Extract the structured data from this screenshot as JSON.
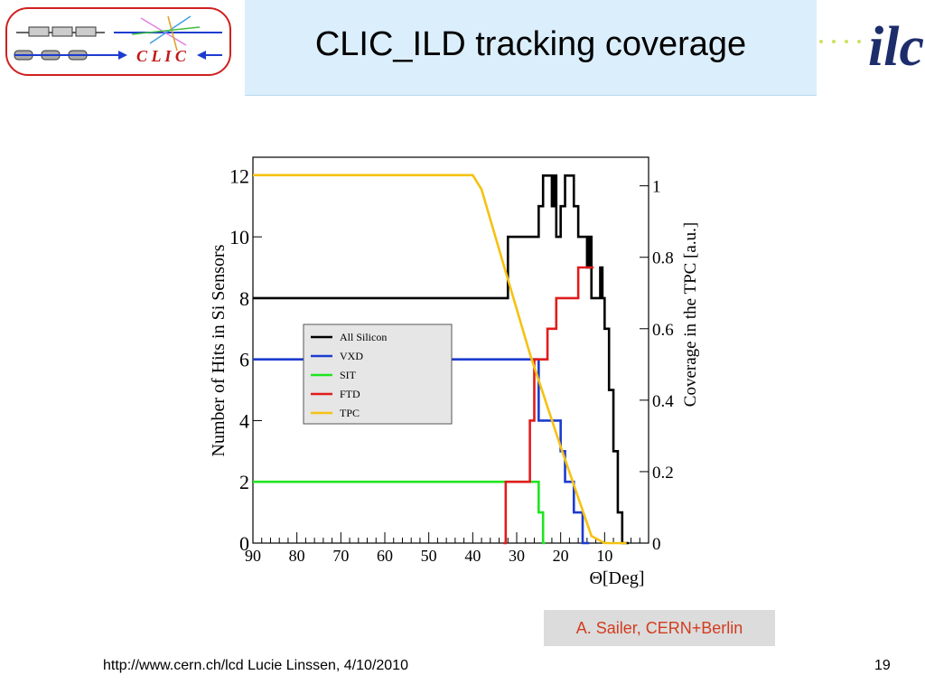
{
  "slide": {
    "title": "CLIC_ILD tracking coverage",
    "clic_logo_text": "C L I C",
    "ilc_logo_text": "ilc",
    "credit": "A. Sailer, CERN+Berlin",
    "footer_left": "http://www.cern.ch/lcd   Lucie Linssen, 4/10/2010",
    "page_number": "19"
  },
  "colors": {
    "title_bg": "#dbeefb",
    "credit_text": "#d23c1e",
    "all_silicon": "#000000",
    "vxd": "#1c3ccf",
    "sit": "#1fe51f",
    "ftd": "#e01c1c",
    "tpc": "#f5c211"
  },
  "chart_data": {
    "type": "line",
    "xlabel": "Θ[Deg]",
    "ylabel": "Number of Hits in Si Sensors",
    "y2label": "Coverage in the TPC [a.u.]",
    "xlim": [
      90,
      0
    ],
    "ylim": [
      0,
      12.6
    ],
    "y2lim": [
      0,
      1.08
    ],
    "xticks": [
      90,
      80,
      70,
      60,
      50,
      40,
      30,
      20,
      10
    ],
    "yticks": [
      0,
      2,
      4,
      6,
      8,
      10,
      12
    ],
    "y2ticks": [
      0,
      0.2,
      0.4,
      0.6,
      0.8,
      1
    ],
    "y2tick_labels": [
      "0",
      "0.2",
      "0.4",
      "0.6",
      "0.8",
      "1"
    ],
    "legend_position": "center-left",
    "series": [
      {
        "name": "All Silicon",
        "axis": "left",
        "step": true,
        "x": [
          90,
          33,
          32,
          30,
          25,
          24,
          22,
          21.5,
          21,
          20,
          19,
          17,
          16,
          14,
          13.5,
          13,
          11,
          10.5,
          10,
          9,
          8,
          7,
          6,
          5.5,
          4.5
        ],
        "y": [
          8,
          8,
          10,
          10,
          11,
          12,
          11,
          12,
          10,
          11,
          12,
          11,
          10,
          9,
          10,
          8,
          9,
          8,
          7,
          5,
          3,
          1,
          0,
          0,
          0
        ]
      },
      {
        "name": "VXD",
        "axis": "left",
        "step": true,
        "x": [
          90,
          26,
          25,
          22,
          20,
          19,
          17,
          16,
          15,
          14,
          13.5
        ],
        "y": [
          6,
          6,
          4,
          4,
          3,
          2,
          1,
          1,
          0,
          0,
          0
        ]
      },
      {
        "name": "SIT",
        "axis": "left",
        "step": true,
        "x": [
          90,
          26,
          25,
          24,
          23.5
        ],
        "y": [
          2,
          2,
          1,
          0,
          0
        ]
      },
      {
        "name": "FTD",
        "axis": "left",
        "step": true,
        "x": [
          33,
          32.5,
          27,
          26,
          24.5,
          23,
          21,
          19,
          16,
          14,
          12.5
        ],
        "y": [
          0,
          2,
          4,
          6,
          6,
          7,
          8,
          8,
          9,
          9,
          9
        ]
      },
      {
        "name": "TPC",
        "axis": "right",
        "step": false,
        "x": [
          90,
          40,
          38,
          33,
          27,
          20,
          13,
          10,
          5
        ],
        "y": [
          1.03,
          1.03,
          0.99,
          0.78,
          0.53,
          0.27,
          0.02,
          0,
          0
        ]
      }
    ]
  }
}
